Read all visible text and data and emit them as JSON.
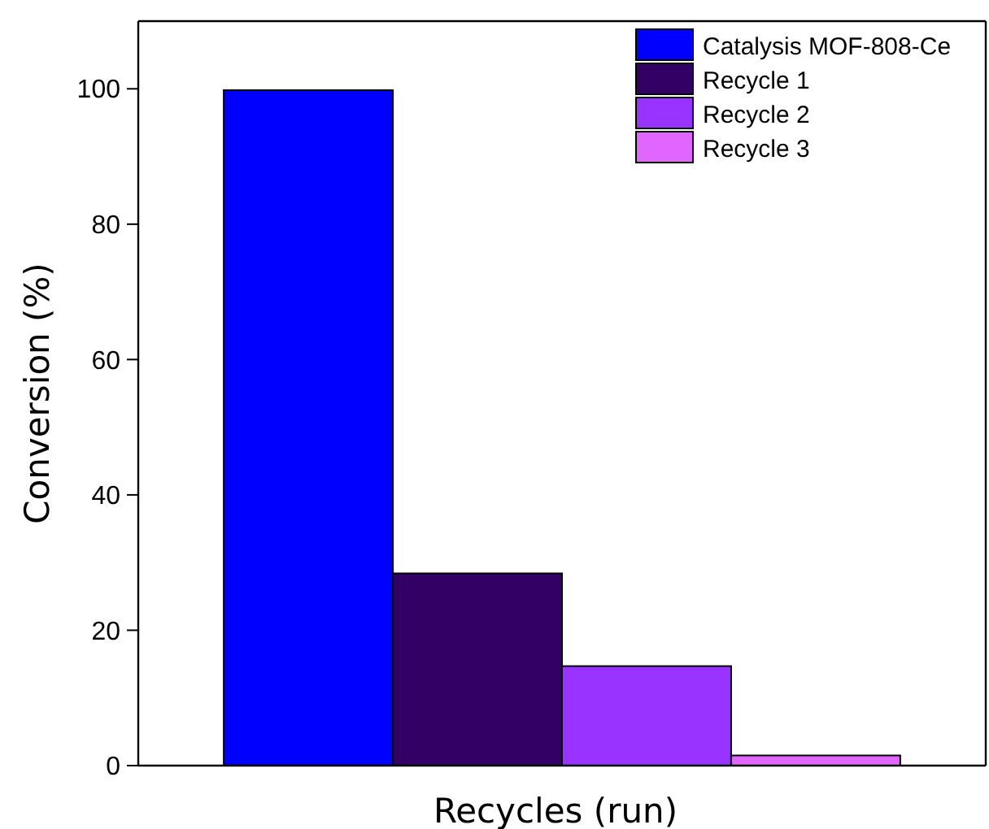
{
  "chart_data": {
    "type": "bar",
    "xlabel": "Recycles (run)",
    "ylabel": "Conversion (%)",
    "categories": [
      null
    ],
    "series": [
      {
        "name": "Catalysis MOF-808-Ce",
        "color": "#0000ff",
        "values": [
          99.8
        ]
      },
      {
        "name": "Recycle 1",
        "color": "#330066",
        "values": [
          28.4
        ]
      },
      {
        "name": "Recycle 2",
        "color": "#9933ff",
        "values": [
          14.7
        ]
      },
      {
        "name": "Recycle 3",
        "color": "#e066ff",
        "values": [
          1.5
        ]
      }
    ],
    "ylim": [
      0,
      110
    ],
    "yticks": [
      0,
      20,
      40,
      60,
      80,
      100
    ],
    "grid": false,
    "legend": "top right"
  }
}
